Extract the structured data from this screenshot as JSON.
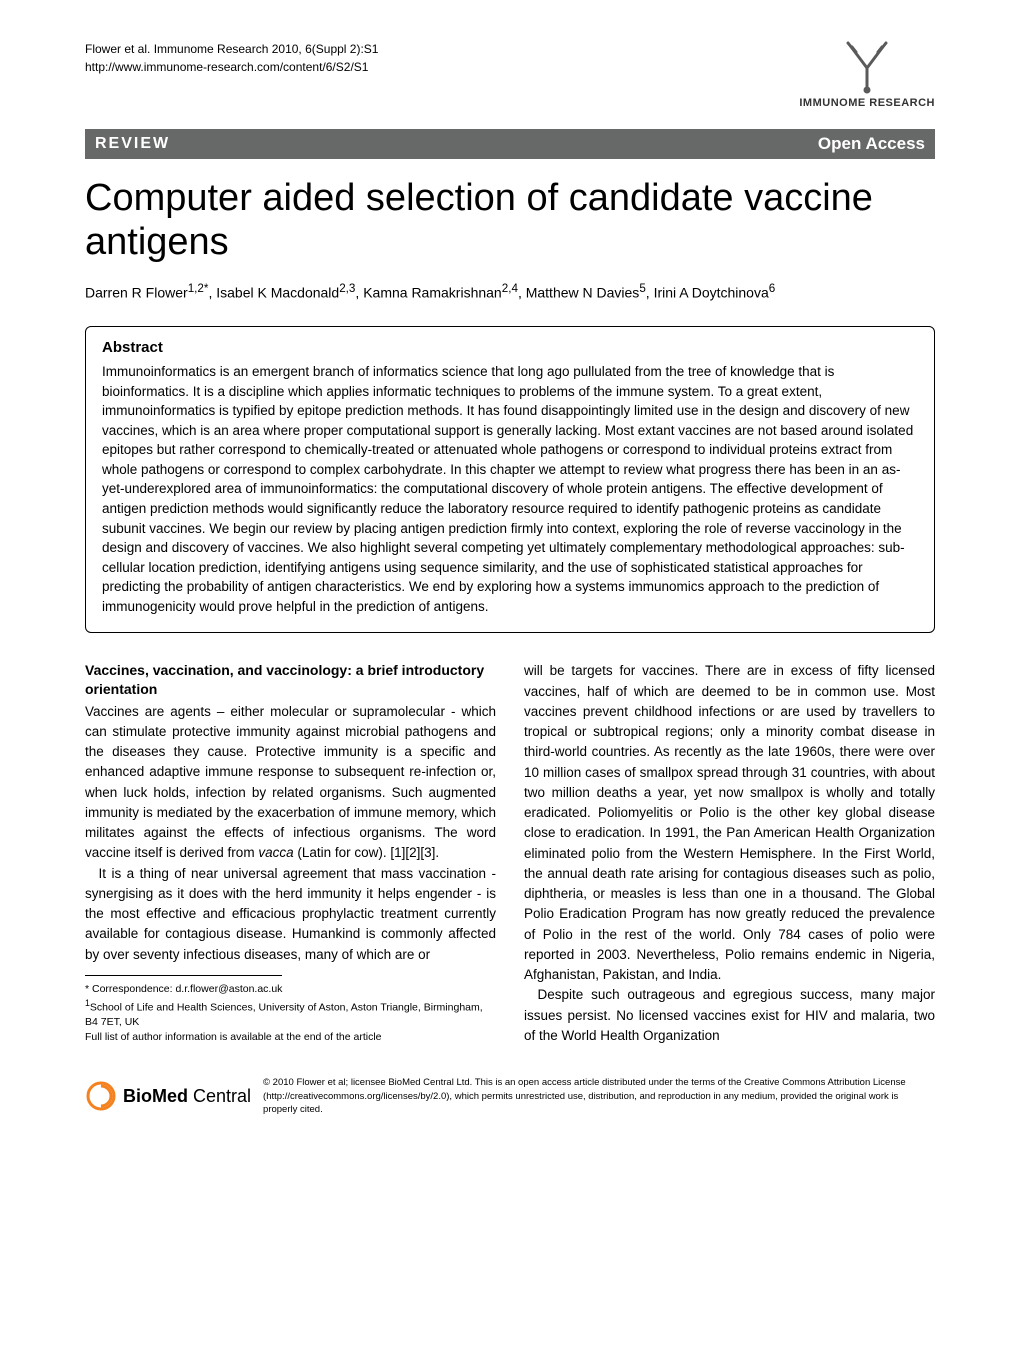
{
  "header": {
    "citation": "Flower et al. Immunome Research 2010, 6(Suppl 2):S1",
    "url": "http://www.immunome-research.com/content/6/S2/S1",
    "journal_name": "IMMUNOME RESEARCH"
  },
  "banner": {
    "article_type": "REVIEW",
    "access": "Open Access"
  },
  "title": "Computer aided selection of candidate vaccine antigens",
  "authors_html": "Darren R Flower<sup>1,2*</sup>, Isabel K Macdonald<sup>2,3</sup>, Kamna Ramakrishnan<sup>2,4</sup>, Matthew N Davies<sup>5</sup>, Irini A Doytchinova<sup>6</sup>",
  "abstract": {
    "heading": "Abstract",
    "text": "Immunoinformatics is an emergent branch of informatics science that long ago pullulated from the tree of knowledge that is bioinformatics. It is a discipline which applies informatic techniques to problems of the immune system. To a great extent, immunoinformatics is typified by epitope prediction methods. It has found disappointingly limited use in the design and discovery of new vaccines, which is an area where proper computational support is generally lacking. Most extant vaccines are not based around isolated epitopes but rather correspond to chemically-treated or attenuated whole pathogens or correspond to individual proteins extract from whole pathogens or correspond to complex carbohydrate. In this chapter we attempt to review what progress there has been in an as-yet-underexplored area of immunoinformatics: the computational discovery of whole protein antigens. The effective development of antigen prediction methods would significantly reduce the laboratory resource required to identify pathogenic proteins as candidate subunit vaccines. We begin our review by placing antigen prediction firmly into context, exploring the role of reverse vaccinology in the design and discovery of vaccines. We also highlight several competing yet ultimately complementary methodological approaches: sub-cellular location prediction, identifying antigens using sequence similarity, and the use of sophisticated statistical approaches for predicting the probability of antigen characteristics. We end by exploring how a systems immunomics approach to the prediction of immunogenicity would prove helpful in the prediction of antigens."
  },
  "body": {
    "section_heading": "Vaccines, vaccination, and vaccinology: a brief introductory orientation",
    "col1_p1_html": "Vaccines are agents – either molecular or supramolecular - which can stimulate protective immunity against microbial pathogens and the diseases they cause. Protective immunity is a specific and enhanced adaptive immune response to subsequent re-infection or, when luck holds, infection by related organisms. Such augmented immunity is mediated by the exacerbation of immune memory, which militates against the effects of infectious organisms. The word vaccine itself is derived from <span class=\"italic\">vacca</span> (Latin for cow). [1][2][3].",
    "col1_p2": "It is a thing of near universal agreement that mass vaccination - synergising as it does with the herd immunity it helps engender - is the most effective and efficacious prophylactic treatment currently available for contagious disease. Humankind is commonly affected by over seventy infectious diseases, many of which are or",
    "col2_p1": "will be targets for vaccines. There are in excess of fifty licensed vaccines, half of which are deemed to be in common use. Most vaccines prevent childhood infections or are used by travellers to tropical or subtropical regions; only a minority combat disease in third-world countries. As recently as the late 1960s, there were over 10 million cases of smallpox spread through 31 countries, with about two million deaths a year, yet now smallpox is wholly and totally eradicated. Poliomyelitis or Polio is the other key global disease close to eradication. In 1991, the Pan American Health Organization eliminated polio from the Western Hemisphere. In the First World, the annual death rate arising for contagious diseases such as polio, diphtheria, or measles is less than one in a thousand. The Global Polio Eradication Program has now greatly reduced the prevalence of Polio in the rest of the world. Only 784 cases of polio were reported in 2003. Nevertheless, Polio remains endemic in Nigeria, Afghanistan, Pakistan, and India.",
    "col2_p2": "Despite such outrageous and egregious success, many major issues persist. No licensed vaccines exist for HIV and malaria, two of the World Health Organization"
  },
  "footer": {
    "correspondence": "* Correspondence: d.r.flower@aston.ac.uk",
    "affiliation_html": "<sup>1</sup>School of Life and Health Sciences, University of Aston, Aston Triangle, Birmingham, B4 7ET, UK",
    "author_info": "Full list of author information is available at the end of the article",
    "biomed_brand_bold": "BioMed",
    "biomed_brand_light": "Central",
    "copyright": "© 2010 Flower et al; licensee BioMed Central Ltd. This is an open access article distributed under the terms of the Creative Commons Attribution License (http://creativecommons.org/licenses/by/2.0), which permits unrestricted use, distribution, and reproduction in any medium, provided the original work is properly cited."
  },
  "colors": {
    "banner_bg": "#676868",
    "banner_fg": "#ffffff",
    "biomed_orange": "#f58220",
    "text": "#000000"
  }
}
